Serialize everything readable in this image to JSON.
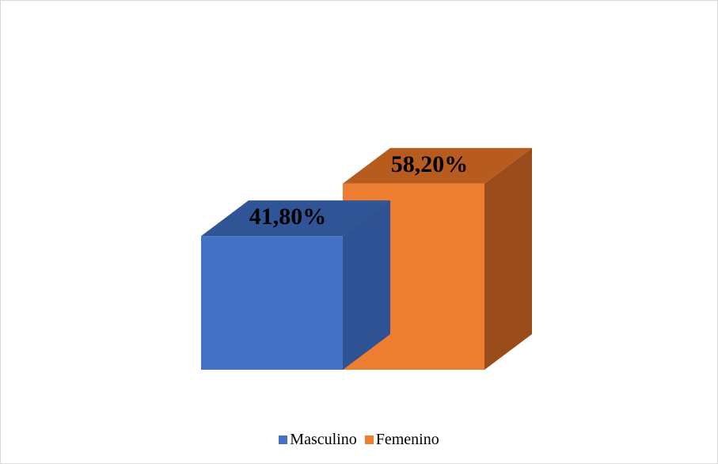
{
  "chart_data": {
    "type": "bar",
    "style": "3d",
    "categories": [
      "Masculino",
      "Femenino"
    ],
    "series": [
      {
        "name": "Masculino",
        "value": 41.8,
        "label": "41,80%",
        "color": "#4472C4",
        "top_color": "#2F5597",
        "side_color": "#2E5293"
      },
      {
        "name": "Femenino",
        "value": 58.2,
        "label": "58,20%",
        "color": "#ED7D31",
        "top_color": "#B85B1E",
        "side_color": "#9A4D1B"
      }
    ],
    "ylim": [
      0,
      70
    ],
    "grid": false,
    "legend_position": "bottom"
  }
}
